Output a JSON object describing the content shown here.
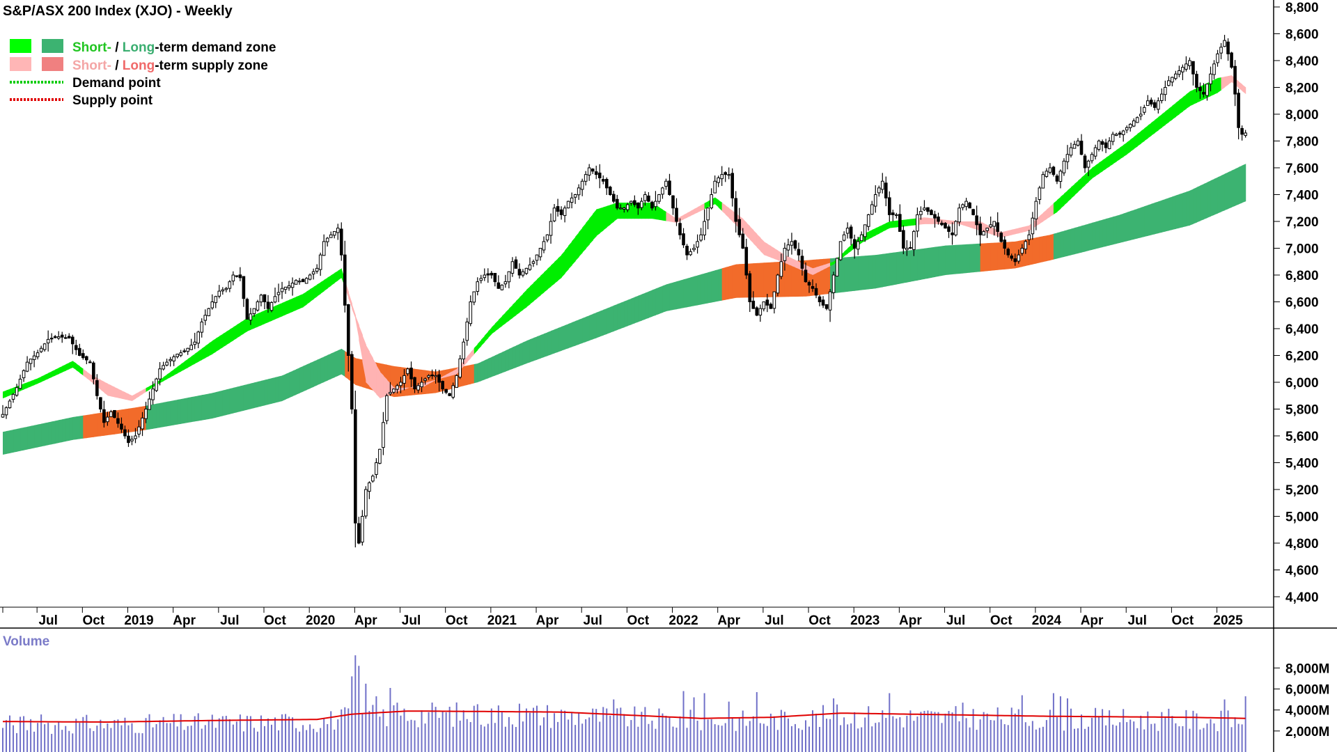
{
  "chart_data": {
    "type": "candlestick",
    "title": "S&P/ASX 200 Index (XJO) - Weekly",
    "legend": {
      "placement": "top-left",
      "items": [
        {
          "parts": [
            {
              "text": "Short-",
              "color": "#22c522"
            },
            {
              "text": " / ",
              "color": "#000000"
            },
            {
              "text": "Long",
              "color": "#3aae70"
            },
            {
              "text": "-term demand zone",
              "color": "#000000"
            }
          ],
          "swatches": [
            "#00ff00",
            "#3cb371"
          ]
        },
        {
          "parts": [
            {
              "text": "Short-",
              "color": "#f4a6a6"
            },
            {
              "text": " / ",
              "color": "#000000"
            },
            {
              "text": "Long",
              "color": "#f06a6a"
            },
            {
              "text": "-term supply zone",
              "color": "#000000"
            }
          ],
          "swatches": [
            "#ffb6b6",
            "#f08080"
          ]
        },
        {
          "parts": [
            {
              "text": "Demand point",
              "color": "#000000"
            }
          ],
          "line": "#00cc00"
        },
        {
          "parts": [
            {
              "text": "Supply point",
              "color": "#000000"
            }
          ],
          "line": "#e00000"
        }
      ]
    },
    "price_axis": {
      "ticks": [
        "8,800",
        "8,600",
        "8,400",
        "8,200",
        "8,000",
        "7,800",
        "7,600",
        "7,400",
        "7,200",
        "7,000",
        "6,800",
        "6,600",
        "6,400",
        "6,200",
        "6,000",
        "5,800",
        "5,600",
        "5,400",
        "5,200",
        "5,000",
        "4,800",
        "4,600",
        "4,400"
      ],
      "ylim": [
        4300,
        8900
      ]
    },
    "x_axis": {
      "labels": [
        "Jul",
        "Oct",
        "2019",
        "Apr",
        "Jul",
        "Oct",
        "2020",
        "Apr",
        "Jul",
        "Oct",
        "2021",
        "Apr",
        "Jul",
        "Oct",
        "2022",
        "Apr",
        "Jul",
        "Oct",
        "2023",
        "Apr",
        "Jul",
        "Oct",
        "2024",
        "Apr",
        "Jul",
        "Oct",
        "2025"
      ],
      "label_weeks": [
        13,
        26,
        39,
        52,
        65,
        78,
        91,
        104,
        117,
        130,
        143,
        156,
        169,
        182,
        195,
        208,
        221,
        234,
        247,
        260,
        273,
        286,
        299,
        312,
        325,
        338,
        351
      ]
    },
    "price_anchors": [
      [
        0,
        5760
      ],
      [
        4,
        5960
      ],
      [
        7,
        6150
      ],
      [
        10,
        6220
      ],
      [
        13,
        6320
      ],
      [
        16,
        6340
      ],
      [
        19,
        6330
      ],
      [
        22,
        6200
      ],
      [
        25,
        6150
      ],
      [
        27,
        5900
      ],
      [
        29,
        5700
      ],
      [
        31,
        5780
      ],
      [
        34,
        5650
      ],
      [
        36,
        5550
      ],
      [
        38,
        5600
      ],
      [
        41,
        5800
      ],
      [
        43,
        5950
      ],
      [
        45,
        6100
      ],
      [
        47,
        6150
      ],
      [
        50,
        6210
      ],
      [
        52,
        6230
      ],
      [
        55,
        6300
      ],
      [
        57,
        6450
      ],
      [
        60,
        6600
      ],
      [
        62,
        6680
      ],
      [
        64,
        6700
      ],
      [
        66,
        6800
      ],
      [
        68,
        6780
      ],
      [
        70,
        6470
      ],
      [
        72,
        6550
      ],
      [
        74,
        6650
      ],
      [
        76,
        6550
      ],
      [
        78,
        6640
      ],
      [
        80,
        6700
      ],
      [
        82,
        6720
      ],
      [
        84,
        6760
      ],
      [
        86,
        6750
      ],
      [
        88,
        6800
      ],
      [
        90,
        6850
      ],
      [
        92,
        7050
      ],
      [
        94,
        7100
      ],
      [
        96,
        7150
      ],
      [
        97,
        6950
      ],
      [
        99,
        6200
      ],
      [
        100,
        5800
      ],
      [
        101,
        4950
      ],
      [
        102,
        4800
      ],
      [
        104,
        5200
      ],
      [
        106,
        5300
      ],
      [
        108,
        5500
      ],
      [
        110,
        5900
      ],
      [
        112,
        5950
      ],
      [
        114,
        6000
      ],
      [
        116,
        6100
      ],
      [
        118,
        5950
      ],
      [
        120,
        6000
      ],
      [
        122,
        6050
      ],
      [
        124,
        6050
      ],
      [
        126,
        5950
      ],
      [
        128,
        5900
      ],
      [
        130,
        6050
      ],
      [
        132,
        6300
      ],
      [
        134,
        6600
      ],
      [
        136,
        6750
      ],
      [
        138,
        6800
      ],
      [
        140,
        6800
      ],
      [
        142,
        6700
      ],
      [
        144,
        6750
      ],
      [
        146,
        6900
      ],
      [
        148,
        6800
      ],
      [
        150,
        6850
      ],
      [
        152,
        6900
      ],
      [
        154,
        7000
      ],
      [
        156,
        7100
      ],
      [
        158,
        7300
      ],
      [
        160,
        7250
      ],
      [
        162,
        7350
      ],
      [
        164,
        7400
      ],
      [
        166,
        7500
      ],
      [
        168,
        7600
      ],
      [
        170,
        7550
      ],
      [
        172,
        7500
      ],
      [
        174,
        7400
      ],
      [
        176,
        7300
      ],
      [
        178,
        7300
      ],
      [
        180,
        7350
      ],
      [
        182,
        7300
      ],
      [
        184,
        7400
      ],
      [
        186,
        7300
      ],
      [
        188,
        7400
      ],
      [
        190,
        7500
      ],
      [
        192,
        7300
      ],
      [
        194,
        7100
      ],
      [
        196,
        6950
      ],
      [
        198,
        7000
      ],
      [
        200,
        7100
      ],
      [
        202,
        7300
      ],
      [
        204,
        7500
      ],
      [
        206,
        7550
      ],
      [
        208,
        7550
      ],
      [
        210,
        7200
      ],
      [
        212,
        7000
      ],
      [
        214,
        6600
      ],
      [
        216,
        6500
      ],
      [
        218,
        6600
      ],
      [
        220,
        6550
      ],
      [
        222,
        6800
      ],
      [
        224,
        7000
      ],
      [
        226,
        7050
      ],
      [
        228,
        6950
      ],
      [
        230,
        6750
      ],
      [
        232,
        6700
      ],
      [
        234,
        6600
      ],
      [
        236,
        6550
      ],
      [
        238,
        6800
      ],
      [
        240,
        7050
      ],
      [
        242,
        7150
      ],
      [
        244,
        7000
      ],
      [
        246,
        7100
      ],
      [
        248,
        7250
      ],
      [
        250,
        7400
      ],
      [
        252,
        7500
      ],
      [
        254,
        7250
      ],
      [
        256,
        7250
      ],
      [
        258,
        7000
      ],
      [
        260,
        7000
      ],
      [
        262,
        7250
      ],
      [
        264,
        7300
      ],
      [
        266,
        7250
      ],
      [
        268,
        7200
      ],
      [
        270,
        7150
      ],
      [
        272,
        7100
      ],
      [
        274,
        7300
      ],
      [
        276,
        7350
      ],
      [
        278,
        7250
      ],
      [
        280,
        7100
      ],
      [
        282,
        7150
      ],
      [
        284,
        7200
      ],
      [
        286,
        7050
      ],
      [
        288,
        6950
      ],
      [
        290,
        6900
      ],
      [
        292,
        7000
      ],
      [
        294,
        7100
      ],
      [
        296,
        7350
      ],
      [
        298,
        7550
      ],
      [
        300,
        7600
      ],
      [
        302,
        7500
      ],
      [
        304,
        7650
      ],
      [
        306,
        7750
      ],
      [
        308,
        7800
      ],
      [
        310,
        7600
      ],
      [
        312,
        7700
      ],
      [
        314,
        7800
      ],
      [
        316,
        7750
      ],
      [
        318,
        7850
      ],
      [
        320,
        7850
      ],
      [
        322,
        7900
      ],
      [
        324,
        7950
      ],
      [
        326,
        8000
      ],
      [
        328,
        8100
      ],
      [
        330,
        8050
      ],
      [
        332,
        8150
      ],
      [
        334,
        8250
      ],
      [
        336,
        8300
      ],
      [
        338,
        8350
      ],
      [
        340,
        8400
      ],
      [
        342,
        8200
      ],
      [
        344,
        8150
      ],
      [
        346,
        8300
      ],
      [
        348,
        8450
      ],
      [
        350,
        8550
      ],
      [
        352,
        8350
      ],
      [
        353,
        8150
      ],
      [
        354,
        7900
      ],
      [
        355,
        7850
      ],
      [
        356,
        7860
      ]
    ],
    "short_zone_anchors": [
      [
        0,
        5930,
        5880
      ],
      [
        10,
        6030,
        5990
      ],
      [
        20,
        6160,
        6110
      ],
      [
        25,
        6060,
        6010
      ],
      [
        30,
        5990,
        5900
      ],
      [
        37,
        5900,
        5860
      ],
      [
        44,
        6000,
        5980
      ],
      [
        60,
        6310,
        6210
      ],
      [
        70,
        6480,
        6380
      ],
      [
        86,
        6660,
        6560
      ],
      [
        97,
        6850,
        6780
      ],
      [
        101,
        6500,
        6470
      ],
      [
        104,
        6280,
        6000
      ],
      [
        108,
        6080,
        5880
      ],
      [
        112,
        5960,
        5920
      ],
      [
        120,
        5960,
        5990
      ],
      [
        130,
        6100,
        6060
      ],
      [
        140,
        6410,
        6360
      ],
      [
        150,
        6690,
        6560
      ],
      [
        160,
        6950,
        6780
      ],
      [
        170,
        7290,
        7090
      ],
      [
        176,
        7340,
        7220
      ],
      [
        186,
        7340,
        7220
      ],
      [
        193,
        7220,
        7190
      ],
      [
        204,
        7380,
        7330
      ],
      [
        212,
        7220,
        7120
      ],
      [
        218,
        7050,
        6950
      ],
      [
        224,
        6950,
        6890
      ],
      [
        232,
        6850,
        6800
      ],
      [
        238,
        6900,
        6880
      ],
      [
        246,
        7100,
        7040
      ],
      [
        254,
        7200,
        7150
      ],
      [
        264,
        7230,
        7180
      ],
      [
        274,
        7200,
        7180
      ],
      [
        280,
        7200,
        7130
      ],
      [
        286,
        7120,
        7080
      ],
      [
        294,
        7170,
        7130
      ],
      [
        302,
        7360,
        7270
      ],
      [
        312,
        7600,
        7520
      ],
      [
        322,
        7790,
        7700
      ],
      [
        332,
        8000,
        7900
      ],
      [
        340,
        8170,
        8060
      ],
      [
        348,
        8270,
        8160
      ],
      [
        352,
        8290,
        8240
      ],
      [
        356,
        8200,
        8150
      ]
    ],
    "long_zone_anchors": [
      [
        0,
        5630,
        5460
      ],
      [
        20,
        5740,
        5570
      ],
      [
        40,
        5820,
        5640
      ],
      [
        60,
        5920,
        5730
      ],
      [
        80,
        6050,
        5860
      ],
      [
        97,
        6250,
        6060
      ],
      [
        101,
        6180,
        5980
      ],
      [
        112,
        6120,
        5890
      ],
      [
        124,
        6080,
        5920
      ],
      [
        136,
        6140,
        6000
      ],
      [
        150,
        6310,
        6140
      ],
      [
        170,
        6520,
        6330
      ],
      [
        190,
        6730,
        6530
      ],
      [
        210,
        6880,
        6630
      ],
      [
        230,
        6910,
        6640
      ],
      [
        250,
        6950,
        6700
      ],
      [
        270,
        7020,
        6800
      ],
      [
        290,
        7050,
        6850
      ],
      [
        300,
        7100,
        6910
      ],
      [
        320,
        7250,
        7040
      ],
      [
        340,
        7430,
        7170
      ],
      [
        356,
        7630,
        7350
      ]
    ],
    "zone_supply_ranges": [
      [
        23,
        40
      ],
      [
        98,
        134
      ],
      [
        190,
        200
      ],
      [
        206,
        236
      ],
      [
        262,
        300
      ],
      [
        349,
        356
      ]
    ],
    "volume": {
      "label": "Volume",
      "ticks": [
        "8,000M",
        "6,000M",
        "4,000M",
        "2,000M"
      ],
      "ylim": [
        0,
        9000
      ],
      "ma_anchors": [
        [
          0,
          2900
        ],
        [
          30,
          2850
        ],
        [
          60,
          3000
        ],
        [
          90,
          3100
        ],
        [
          100,
          3600
        ],
        [
          116,
          3900
        ],
        [
          140,
          3850
        ],
        [
          160,
          3800
        ],
        [
          180,
          3500
        ],
        [
          200,
          3200
        ],
        [
          220,
          3300
        ],
        [
          240,
          3700
        ],
        [
          260,
          3600
        ],
        [
          280,
          3500
        ],
        [
          300,
          3400
        ],
        [
          320,
          3350
        ],
        [
          340,
          3300
        ],
        [
          356,
          3200
        ]
      ],
      "spikes": [
        [
          100,
          7200
        ],
        [
          101,
          9200
        ],
        [
          102,
          8200
        ],
        [
          104,
          6500
        ],
        [
          107,
          5300
        ],
        [
          111,
          6100
        ],
        [
          113,
          4700
        ],
        [
          135,
          4400
        ],
        [
          148,
          4600
        ],
        [
          175,
          5000
        ],
        [
          195,
          5800
        ],
        [
          198,
          5200
        ],
        [
          201,
          5600
        ],
        [
          208,
          4800
        ],
        [
          216,
          5700
        ],
        [
          238,
          5100
        ],
        [
          254,
          5600
        ],
        [
          275,
          4700
        ],
        [
          292,
          5400
        ],
        [
          301,
          5600
        ],
        [
          303,
          5300
        ],
        [
          305,
          5100
        ],
        [
          350,
          5000
        ],
        [
          356,
          5300
        ]
      ]
    }
  }
}
